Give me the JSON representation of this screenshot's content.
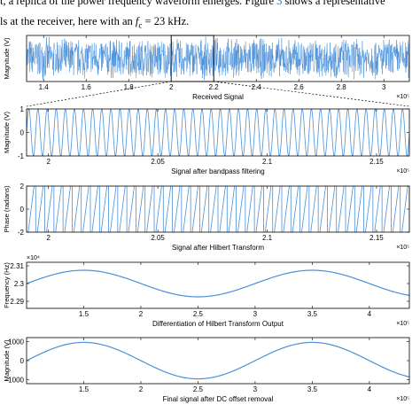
{
  "caption": {
    "line1": "t, a replica of the power frequency waveform emerges. Figure",
    "line1_ref": "3",
    "line1_tail": "shows a representative",
    "line2_pre": "ls at the receiver, here with an",
    "line2_var": "f",
    "line2_sub": "c",
    "line2_post": "= 23 kHz."
  },
  "colors": {
    "signal": "#4a90d9",
    "axis": "#000000",
    "zoom_box": "#000000"
  },
  "chart_data": [
    {
      "type": "line",
      "title": "Received Signal",
      "ylabel": "Magnitude (V)",
      "xlabel": "",
      "x_exponent": "×10⁵",
      "xlim": [
        1.32,
        3.12
      ],
      "xticks": [
        "1.4",
        "1.6",
        "1.8",
        "2",
        "2.2",
        "2.4",
        "2.6",
        "2.8",
        "3"
      ],
      "xtick_values": [
        1.4,
        1.6,
        1.8,
        2.0,
        2.2,
        2.4,
        2.6,
        2.8,
        3.0
      ],
      "ylim": [
        -1,
        1
      ],
      "zoom_region": [
        2.0,
        2.2
      ],
      "signal": "dense noise-like band, amplitude about 1"
    },
    {
      "type": "line",
      "title": "Signal after bandpass filtering",
      "ylabel": "Magnitude (V)",
      "x_exponent": "×10⁵",
      "xlim": [
        1.99,
        2.165
      ],
      "xticks": [
        "2",
        "2.05",
        "2.1",
        "2.15"
      ],
      "xtick_values": [
        2.0,
        2.05,
        2.1,
        2.15
      ],
      "ylim": [
        -1,
        1
      ],
      "yticks": [
        "1",
        "0",
        "-1"
      ],
      "ytick_values": [
        1,
        0,
        -1
      ],
      "cycles": 42
    },
    {
      "type": "line",
      "title": "Signal after Hilbert Transform",
      "ylabel": "Phase (radians)",
      "x_exponent": "×10⁵",
      "xlim": [
        1.99,
        2.165
      ],
      "xticks": [
        "2",
        "2.05",
        "2.1",
        "2.15"
      ],
      "xtick_values": [
        2.0,
        2.05,
        2.1,
        2.15
      ],
      "ylim": [
        -2,
        2
      ],
      "yticks": [
        "2",
        "0",
        "-2"
      ],
      "ytick_values": [
        2,
        0,
        -2
      ],
      "cycles": 42
    },
    {
      "type": "line",
      "title": "Differentiation of Hilbert Transform Output",
      "ylabel": "Frequency (Hz)",
      "y_exponent": "×10⁴",
      "x_exponent": "×10⁵",
      "xlim": [
        1.0,
        4.35
      ],
      "xticks": [
        "1.5",
        "2",
        "2.5",
        "3",
        "3.5",
        "4"
      ],
      "xtick_values": [
        1.5,
        2.0,
        2.5,
        3.0,
        3.5,
        4.0
      ],
      "ylim": [
        2.286,
        2.312
      ],
      "yticks": [
        "2.31",
        "2.3",
        "2.29"
      ],
      "ytick_values": [
        2.31,
        2.3,
        2.29
      ],
      "series": [
        {
          "center": 2.3,
          "amplitude": 0.0075,
          "peak_x": [
            1.5,
            3.5
          ],
          "trough_x": [
            2.5
          ]
        }
      ]
    },
    {
      "type": "line",
      "title": "Final signal after DC offset removal",
      "ylabel": "Magnitude (V)",
      "x_exponent": "×10⁵",
      "xlim": [
        1.0,
        4.35
      ],
      "xticks": [
        "1.5",
        "2",
        "2.5",
        "3",
        "3.5",
        "4"
      ],
      "xtick_values": [
        1.5,
        2.0,
        2.5,
        3.0,
        3.5,
        4.0
      ],
      "ylim": [
        -1200,
        1200
      ],
      "yticks": [
        "1000",
        "0",
        "-1000"
      ],
      "ytick_values": [
        1000,
        0,
        -1000
      ],
      "series": [
        {
          "amplitude": 950,
          "peak_x": [
            1.5,
            3.5
          ],
          "trough_x": [
            2.5
          ]
        }
      ]
    }
  ]
}
